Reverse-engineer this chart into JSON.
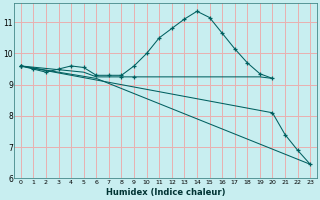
{
  "xlabel": "Humidex (Indice chaleur)",
  "bg_color": "#c8eef0",
  "grid_color": "#e8b0b0",
  "line_color": "#006060",
  "xlim": [
    -0.5,
    23.5
  ],
  "ylim": [
    6.0,
    11.6
  ],
  "yticks": [
    6,
    7,
    8,
    9,
    10,
    11
  ],
  "xticks": [
    0,
    1,
    2,
    3,
    4,
    5,
    6,
    7,
    8,
    9,
    10,
    11,
    12,
    13,
    14,
    15,
    16,
    17,
    18,
    19,
    20,
    21,
    22,
    23
  ],
  "series": [
    {
      "x": [
        0,
        1,
        2,
        3,
        4,
        5,
        6,
        7,
        8,
        9,
        10,
        11,
        12,
        13,
        14,
        15,
        16,
        17,
        18,
        19,
        20
      ],
      "y": [
        9.6,
        9.5,
        9.4,
        9.5,
        9.6,
        9.55,
        9.3,
        9.3,
        9.3,
        9.6,
        10.0,
        10.5,
        10.8,
        11.1,
        11.35,
        11.15,
        10.65,
        10.15,
        9.7,
        9.35,
        9.2
      ]
    },
    {
      "x": [
        0,
        5,
        6,
        7,
        8,
        9,
        10,
        11,
        12,
        13,
        14,
        15,
        16,
        17,
        18,
        19,
        20
      ],
      "y": [
        9.6,
        9.4,
        9.25,
        9.25,
        9.25,
        9.25,
        9.25,
        9.25,
        9.25,
        9.25,
        9.25,
        9.25,
        9.25,
        9.25,
        9.25,
        9.25,
        9.2
      ]
    },
    {
      "x": [
        0,
        20,
        21,
        22,
        23
      ],
      "y": [
        9.6,
        8.1,
        7.4,
        6.9,
        6.45
      ]
    },
    {
      "x": [
        0,
        6,
        23
      ],
      "y": [
        9.6,
        9.2,
        6.45
      ]
    }
  ]
}
